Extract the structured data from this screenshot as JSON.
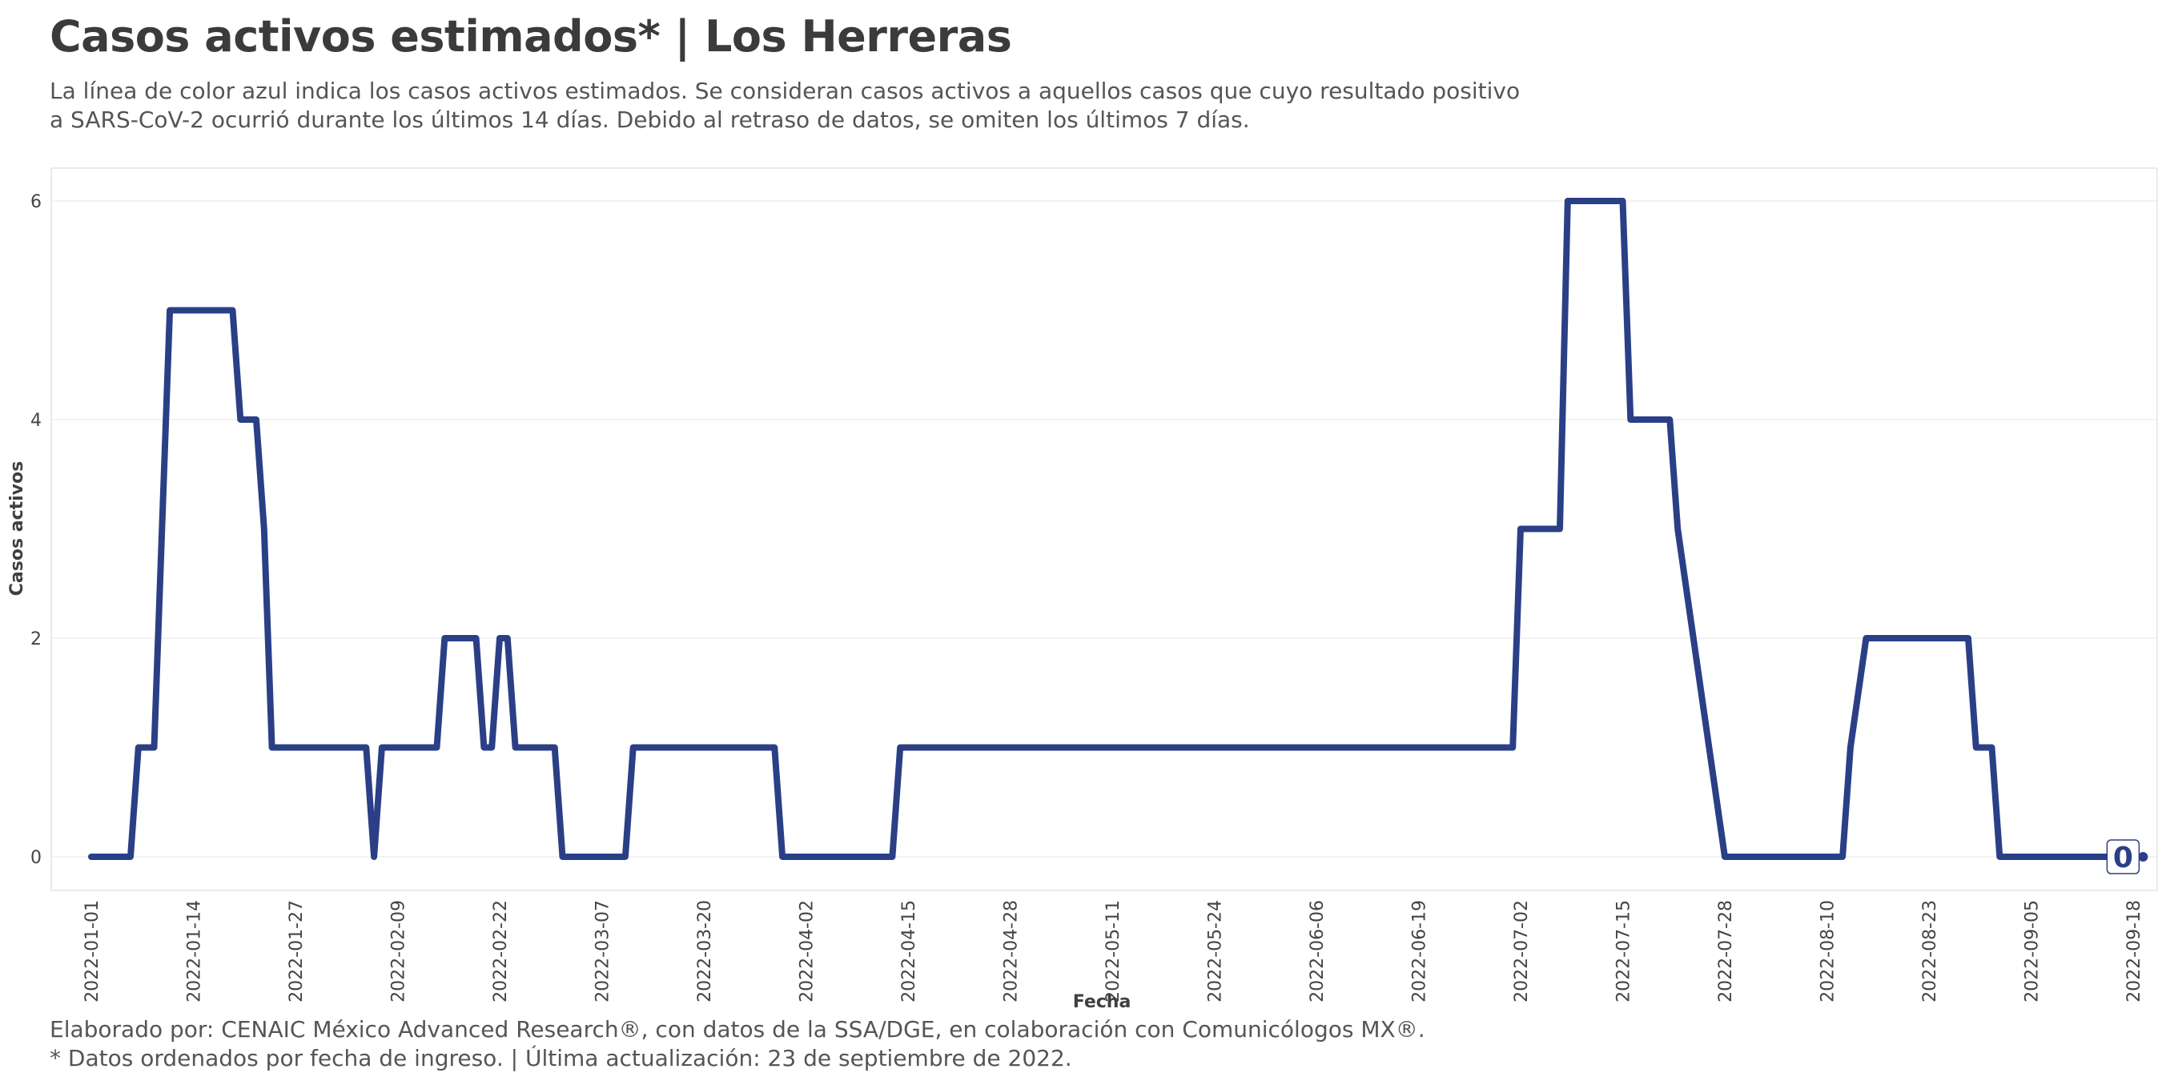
{
  "header": {
    "title": "Casos activos estimados* | Los Herreras",
    "subtitle_lines": [
      "La línea de color azul indica los casos activos estimados. Se consideran casos activos a aquellos casos que cuyo resultado positivo",
      "a SARS-CoV-2 ocurrió durante los últimos 14 días. Debido al retraso de datos, se omiten los últimos 7 días."
    ]
  },
  "footer": {
    "lines": [
      "Elaborado por: CENAIC México Advanced Research®, con datos de la SSA/DGE, en colaboración con Comunicólogos MX®.",
      "* Datos ordenados por fecha de ingreso. | Última actualización: 23 de septiembre de 2022."
    ]
  },
  "colors": {
    "line": "#2b3f86",
    "grid": "#e6e6e6",
    "panel_border": "#e3e3e3"
  },
  "chart_data": {
    "type": "line",
    "xlabel": "Fecha",
    "ylabel": "Casos activos",
    "xlim": [
      "2022-01-01",
      "2022-09-18"
    ],
    "ylim": [
      0,
      6
    ],
    "y_ticks": [
      0,
      2,
      4,
      6
    ],
    "x_ticks": [
      "2022-01-01",
      "2022-01-14",
      "2022-01-27",
      "2022-02-09",
      "2022-02-22",
      "2022-03-07",
      "2022-03-20",
      "2022-04-02",
      "2022-04-15",
      "2022-04-28",
      "2022-05-11",
      "2022-05-24",
      "2022-06-06",
      "2022-06-19",
      "2022-07-02",
      "2022-07-15",
      "2022-07-28",
      "2022-08-10",
      "2022-08-23",
      "2022-09-05",
      "2022-09-18"
    ],
    "series": [
      {
        "x": [
          "2022-01-01",
          "2022-01-06",
          "2022-01-07",
          "2022-01-09",
          "2022-01-10",
          "2022-01-11",
          "2022-01-12",
          "2022-01-13",
          "2022-01-19",
          "2022-01-20",
          "2022-01-22",
          "2022-01-23",
          "2022-01-24",
          "2022-01-25",
          "2022-02-05",
          "2022-02-06",
          "2022-02-07",
          "2022-02-08",
          "2022-02-14",
          "2022-02-15",
          "2022-02-19",
          "2022-02-20",
          "2022-02-21",
          "2022-02-22",
          "2022-02-23",
          "2022-02-24",
          "2022-02-25",
          "2022-02-26",
          "2022-02-27",
          "2022-02-28",
          "2022-03-01",
          "2022-03-02",
          "2022-03-10",
          "2022-03-11",
          "2022-03-29",
          "2022-03-30",
          "2022-04-13",
          "2022-04-14",
          "2022-07-01",
          "2022-07-02",
          "2022-07-07",
          "2022-07-08",
          "2022-07-15",
          "2022-07-16",
          "2022-07-21",
          "2022-07-22",
          "2022-07-28",
          "2022-07-29",
          "2022-07-30",
          "2022-08-12",
          "2022-08-13",
          "2022-08-15",
          "2022-08-16",
          "2022-08-17",
          "2022-08-28",
          "2022-08-29",
          "2022-08-31",
          "2022-09-01",
          "2022-09-16"
        ],
        "values": [
          0,
          0,
          1,
          1,
          3,
          5,
          5,
          5,
          5,
          4,
          4,
          3,
          1,
          1,
          1,
          0,
          1,
          1,
          1,
          2,
          2,
          1,
          1,
          2,
          2,
          1,
          1,
          1,
          1,
          1,
          1,
          0,
          0,
          1,
          1,
          0,
          0,
          1,
          1,
          3,
          3,
          6,
          6,
          4,
          4,
          3,
          0,
          0,
          0,
          0,
          1,
          2,
          2,
          2,
          2,
          1,
          1,
          0,
          0
        ]
      }
    ],
    "last_value_label": "0"
  }
}
